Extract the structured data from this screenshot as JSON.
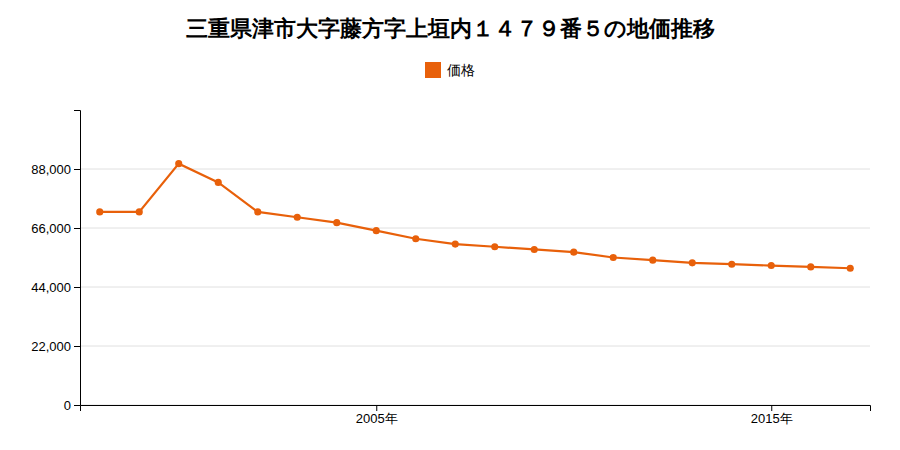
{
  "chart_data": {
    "type": "line",
    "title": "三重県津市大字藤方字上垣内１４７９番５の地価推移",
    "x": [
      1998,
      1999,
      2000,
      2001,
      2002,
      2003,
      2004,
      2005,
      2006,
      2007,
      2008,
      2009,
      2010,
      2011,
      2012,
      2013,
      2014,
      2015,
      2016,
      2017
    ],
    "series": [
      {
        "name": "価格",
        "color": "#e8600a",
        "values": [
          72000,
          72000,
          90000,
          83000,
          72000,
          70000,
          68000,
          65000,
          62000,
          60000,
          59000,
          58000,
          57000,
          55000,
          54000,
          53000,
          52500,
          52000,
          51500,
          51000
        ]
      }
    ],
    "marker": "circle",
    "xlim": [
      1997.5,
      2017.5
    ],
    "xticks": [
      {
        "value": 2005,
        "label": "2005年"
      },
      {
        "value": 2015,
        "label": "2015年"
      }
    ],
    "ylim": [
      0,
      110000
    ],
    "yticks": [
      0,
      {
        "value": 22000,
        "label": "22,000"
      },
      {
        "value": 44000,
        "label": "44,000"
      },
      {
        "value": 66000,
        "label": "66,000"
      },
      {
        "value": 88000,
        "label": "88,000"
      }
    ],
    "grid": true,
    "legend": "top"
  }
}
